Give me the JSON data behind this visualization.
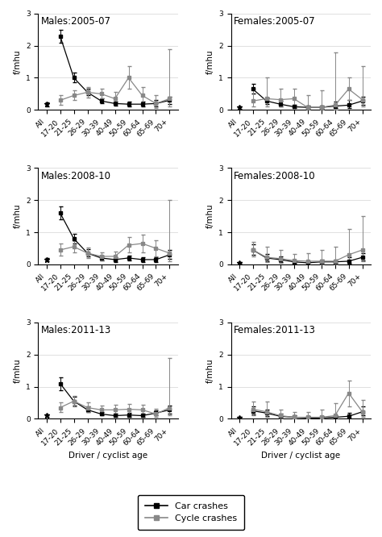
{
  "categories": [
    "All",
    "17-20",
    "21-25",
    "26-29",
    "30-39",
    "40-49",
    "50-59",
    "60-64",
    "65-69",
    "70+"
  ],
  "panels": [
    {
      "title": "Males:2005-07",
      "car": [
        null,
        2.3,
        1.0,
        0.55,
        0.28,
        0.2,
        0.18,
        0.18,
        0.2,
        0.3
      ],
      "car_lo": [
        null,
        2.1,
        0.85,
        0.45,
        0.22,
        0.13,
        0.12,
        0.1,
        0.1,
        0.18
      ],
      "car_hi": [
        null,
        2.5,
        1.15,
        0.65,
        0.36,
        0.27,
        0.26,
        0.26,
        0.3,
        0.42
      ],
      "cyc": [
        null,
        0.3,
        0.45,
        0.55,
        0.5,
        0.35,
        1.0,
        0.45,
        0.2,
        0.35
      ],
      "cyc_lo": [
        null,
        0.15,
        0.3,
        0.38,
        0.35,
        0.18,
        0.65,
        0.2,
        0.05,
        0.1
      ],
      "cyc_hi": [
        null,
        0.45,
        0.62,
        0.72,
        0.65,
        0.55,
        1.35,
        0.7,
        0.45,
        1.9
      ],
      "car_all": 0.18,
      "car_all_lo": 0.06,
      "car_all_hi": 0.06
    },
    {
      "title": "Females:2005-07",
      "car": [
        null,
        0.65,
        0.28,
        0.18,
        0.1,
        0.08,
        0.08,
        0.12,
        0.15,
        0.28
      ],
      "car_lo": [
        null,
        0.5,
        0.18,
        0.1,
        0.05,
        0.03,
        0.03,
        0.05,
        0.05,
        0.15
      ],
      "car_hi": [
        null,
        0.8,
        0.38,
        0.28,
        0.15,
        0.13,
        0.13,
        0.25,
        0.3,
        0.42
      ],
      "cyc": [
        null,
        0.28,
        0.35,
        0.32,
        0.35,
        0.08,
        0.08,
        0.15,
        0.65,
        0.32
      ],
      "cyc_lo": [
        null,
        0.1,
        0.1,
        0.1,
        0.1,
        0.0,
        0.0,
        0.0,
        0.3,
        0.1
      ],
      "cyc_hi": [
        null,
        0.65,
        1.0,
        0.65,
        0.65,
        0.45,
        0.6,
        1.8,
        1.0,
        1.35
      ],
      "car_all": 0.08,
      "car_all_lo": 0.04,
      "car_all_hi": 0.04
    },
    {
      "title": "Males:2008-10",
      "car": [
        null,
        1.6,
        0.8,
        0.35,
        0.2,
        0.15,
        0.2,
        0.15,
        0.15,
        0.3
      ],
      "car_lo": [
        null,
        1.4,
        0.65,
        0.25,
        0.13,
        0.08,
        0.12,
        0.08,
        0.08,
        0.18
      ],
      "car_hi": [
        null,
        1.8,
        0.95,
        0.47,
        0.27,
        0.22,
        0.28,
        0.22,
        0.22,
        0.45
      ],
      "cyc": [
        null,
        0.45,
        0.55,
        0.35,
        0.25,
        0.25,
        0.6,
        0.65,
        0.5,
        0.35
      ],
      "cyc_lo": [
        null,
        0.28,
        0.38,
        0.2,
        0.12,
        0.12,
        0.38,
        0.38,
        0.25,
        0.1
      ],
      "cyc_hi": [
        null,
        0.65,
        0.72,
        0.52,
        0.38,
        0.4,
        0.85,
        0.92,
        0.75,
        2.0
      ],
      "car_all": 0.15,
      "car_all_lo": 0.05,
      "car_all_hi": 0.05
    },
    {
      "title": "Females:2008-10",
      "car": [
        null,
        0.45,
        0.2,
        0.15,
        0.08,
        0.05,
        0.08,
        0.08,
        0.1,
        0.22
      ],
      "car_lo": [
        null,
        0.3,
        0.1,
        0.08,
        0.03,
        0.01,
        0.02,
        0.02,
        0.03,
        0.12
      ],
      "car_hi": [
        null,
        0.62,
        0.32,
        0.24,
        0.13,
        0.1,
        0.15,
        0.15,
        0.22,
        0.35
      ],
      "cyc": [
        null,
        0.45,
        0.22,
        0.18,
        0.12,
        0.1,
        0.1,
        0.1,
        0.3,
        0.45
      ],
      "cyc_lo": [
        null,
        0.25,
        0.08,
        0.05,
        0.03,
        0.01,
        0.01,
        0.01,
        0.05,
        0.1
      ],
      "cyc_hi": [
        null,
        0.7,
        0.55,
        0.45,
        0.32,
        0.35,
        0.45,
        0.55,
        1.1,
        1.5
      ],
      "car_all": 0.05,
      "car_all_lo": 0.03,
      "car_all_hi": 0.03
    },
    {
      "title": "Males:2011-13",
      "car": [
        null,
        1.1,
        0.55,
        0.28,
        0.15,
        0.1,
        0.12,
        0.1,
        0.18,
        0.28
      ],
      "car_lo": [
        null,
        0.9,
        0.42,
        0.2,
        0.1,
        0.05,
        0.07,
        0.05,
        0.1,
        0.16
      ],
      "car_hi": [
        null,
        1.3,
        0.68,
        0.38,
        0.22,
        0.16,
        0.18,
        0.16,
        0.26,
        0.42
      ],
      "cyc": [
        null,
        0.35,
        0.55,
        0.35,
        0.28,
        0.28,
        0.3,
        0.28,
        0.15,
        0.35
      ],
      "cyc_lo": [
        null,
        0.2,
        0.38,
        0.2,
        0.16,
        0.15,
        0.16,
        0.14,
        0.05,
        0.1
      ],
      "cyc_hi": [
        null,
        0.52,
        0.72,
        0.52,
        0.42,
        0.43,
        0.46,
        0.44,
        0.32,
        1.9
      ],
      "car_all": 0.1,
      "car_all_lo": 0.04,
      "car_all_hi": 0.04
    },
    {
      "title": "Females:2011-13",
      "car": [
        null,
        0.25,
        0.18,
        0.08,
        0.05,
        0.03,
        0.03,
        0.05,
        0.08,
        0.22
      ],
      "car_lo": [
        null,
        0.14,
        0.08,
        0.03,
        0.01,
        0.01,
        0.01,
        0.01,
        0.02,
        0.1
      ],
      "car_hi": [
        null,
        0.38,
        0.3,
        0.15,
        0.1,
        0.08,
        0.08,
        0.12,
        0.18,
        0.38
      ],
      "cyc": [
        null,
        0.3,
        0.22,
        0.1,
        0.05,
        0.05,
        0.05,
        0.1,
        0.8,
        0.22
      ],
      "cyc_lo": [
        null,
        0.12,
        0.05,
        0.01,
        0.0,
        0.0,
        0.0,
        0.01,
        0.4,
        0.05
      ],
      "cyc_hi": [
        null,
        0.55,
        0.55,
        0.3,
        0.2,
        0.22,
        0.28,
        0.48,
        1.2,
        0.6
      ],
      "car_all": 0.03,
      "car_all_lo": 0.02,
      "car_all_hi": 0.02
    }
  ],
  "ylim": [
    0,
    3
  ],
  "yticks": [
    0,
    1,
    2,
    3
  ],
  "car_color": "#000000",
  "cyc_color": "#888888",
  "bg_color": "#ffffff",
  "xlabel": "Driver / cyclist age",
  "ylabel": "f/mhu",
  "legend_car": "Car crashes",
  "legend_cyc": "Cycle crashes",
  "title_fontsize": 8.5,
  "label_fontsize": 7.5,
  "tick_fontsize": 6.5
}
